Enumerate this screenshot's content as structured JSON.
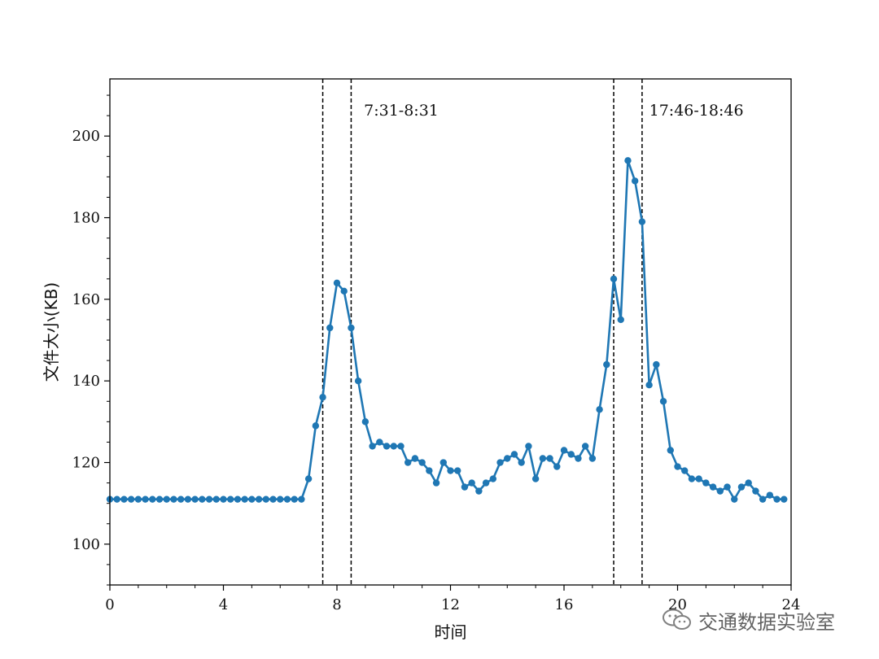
{
  "chart_data": {
    "type": "line",
    "title": "",
    "xlabel": "时间",
    "ylabel": "文件大小(KB)",
    "xlim": [
      0,
      24
    ],
    "ylim": [
      90,
      214
    ],
    "xticks": [
      0,
      4,
      8,
      12,
      16,
      20,
      24
    ],
    "yticks": [
      100,
      120,
      140,
      160,
      180,
      200
    ],
    "color": "#1f77b4",
    "series": [
      {
        "x": [
          0,
          0.25,
          0.5,
          0.75,
          1,
          1.25,
          1.5,
          1.75,
          2,
          2.25,
          2.5,
          2.75,
          3,
          3.25,
          3.5,
          3.75,
          4,
          4.25,
          4.5,
          4.75,
          5,
          5.25,
          5.5,
          5.75,
          6,
          6.25,
          6.5,
          6.75,
          7,
          7.25,
          7.5,
          7.75,
          8,
          8.25,
          8.5,
          8.75,
          9,
          9.25,
          9.5,
          9.75,
          10,
          10.25,
          10.5,
          10.75,
          11,
          11.25,
          11.5,
          11.75,
          12,
          12.25,
          12.5,
          12.75,
          13,
          13.25,
          13.5,
          13.75,
          14,
          14.25,
          14.5,
          14.75,
          15,
          15.25,
          15.5,
          15.75,
          16,
          16.25,
          16.5,
          16.75,
          17,
          17.25,
          17.5,
          17.75,
          18,
          18.25,
          18.5,
          18.75,
          19,
          19.25,
          19.5,
          19.75,
          20,
          20.25,
          20.5,
          20.75,
          21,
          21.25,
          21.5,
          21.75,
          22,
          22.25,
          22.5,
          22.75,
          23,
          23.25,
          23.5,
          23.75
        ],
        "values": [
          111,
          111,
          111,
          111,
          111,
          111,
          111,
          111,
          111,
          111,
          111,
          111,
          111,
          111,
          111,
          111,
          111,
          111,
          111,
          111,
          111,
          111,
          111,
          111,
          111,
          111,
          111,
          111,
          116,
          129,
          136,
          153,
          164,
          162,
          153,
          140,
          130,
          124,
          125,
          124,
          124,
          124,
          120,
          121,
          120,
          118,
          115,
          120,
          118,
          118,
          114,
          115,
          113,
          115,
          116,
          120,
          121,
          122,
          120,
          124,
          116,
          121,
          121,
          119,
          123,
          122,
          121,
          124,
          121,
          133,
          144,
          165,
          155,
          194,
          189,
          179,
          139,
          144,
          135,
          123,
          119,
          118,
          116,
          116,
          115,
          114,
          113,
          114,
          111,
          114,
          115,
          113,
          111,
          112,
          111,
          111
        ]
      }
    ],
    "vlines": [
      7.5,
      8.5,
      17.75,
      18.75
    ],
    "annotations": [
      {
        "x": 8.95,
        "y": 205,
        "text": "7:31-8:31"
      },
      {
        "x": 19.0,
        "y": 205,
        "text": "17:46-18:46"
      }
    ]
  },
  "watermark": {
    "text": "交通数据实验室",
    "icon": "wechat-icon"
  }
}
